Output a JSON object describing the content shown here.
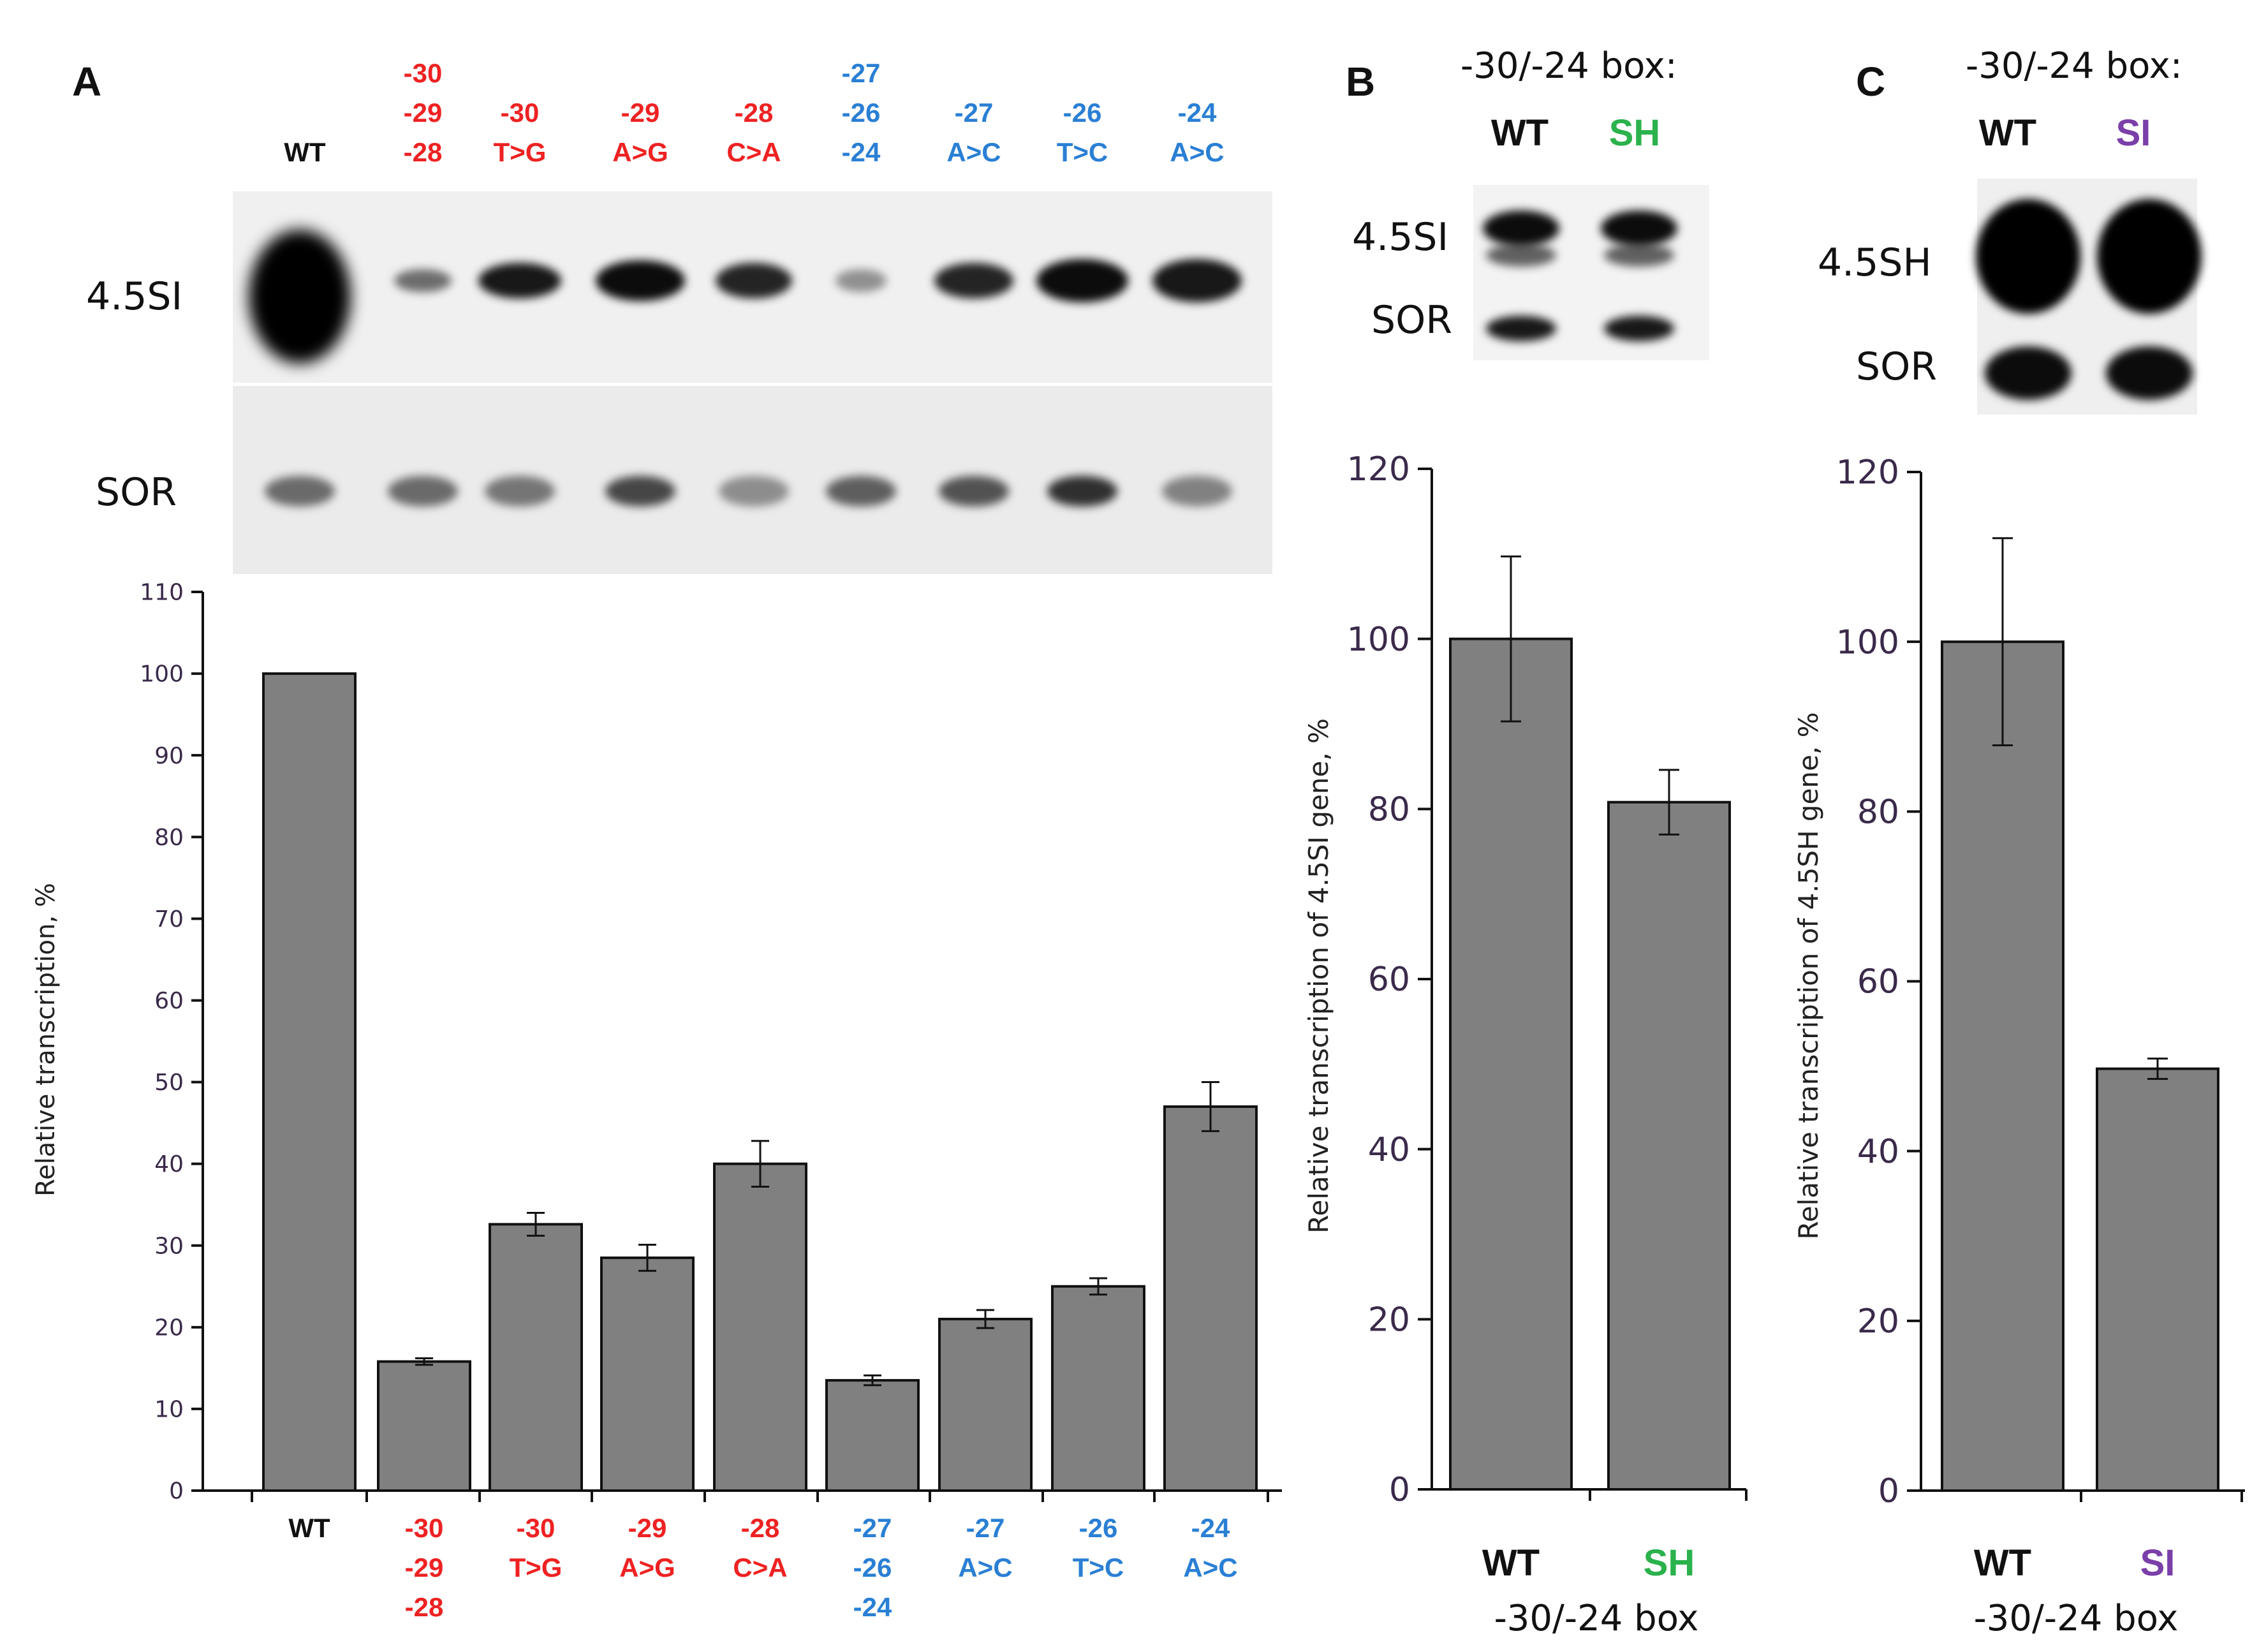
{
  "colors": {
    "red": "#ee2222",
    "blue": "#2a7fd4",
    "green": "#2bb24c",
    "purple": "#7a3fa8",
    "black": "#111111",
    "bar": "#808080"
  },
  "panels": {
    "A": "A",
    "B": "B",
    "C": "C"
  },
  "gel_labels": {
    "a_top": "4.5SI",
    "a_bottom": "SOR",
    "b_top": "4.5SI",
    "b_bottom": "SOR",
    "c_top": "4.5SH",
    "c_bottom": "SOR"
  },
  "box_labels": {
    "b_title": "-30/-24 box:",
    "c_title": "-30/-24 box:",
    "b_bottom": "-30/-24 box",
    "c_bottom": "-30/-24 box"
  },
  "lanes_A": [
    {
      "lines": [
        "WT"
      ],
      "color": "black"
    },
    {
      "lines": [
        "-30",
        "-29",
        "-28"
      ],
      "color": "red"
    },
    {
      "lines": [
        "-30",
        "T>G"
      ],
      "color": "red"
    },
    {
      "lines": [
        "-29",
        "A>G"
      ],
      "color": "red"
    },
    {
      "lines": [
        "-28",
        "C>A"
      ],
      "color": "red"
    },
    {
      "lines": [
        "-27",
        "-26",
        "-24"
      ],
      "color": "blue"
    },
    {
      "lines": [
        "-27",
        "A>C"
      ],
      "color": "blue"
    },
    {
      "lines": [
        "-26",
        "T>C"
      ],
      "color": "blue"
    },
    {
      "lines": [
        "-24",
        "A>C"
      ],
      "color": "blue"
    }
  ],
  "lanes_B": [
    {
      "label": "WT",
      "color": "black"
    },
    {
      "label": "SH",
      "color": "green"
    }
  ],
  "lanes_C": [
    {
      "label": "WT",
      "color": "black"
    },
    {
      "label": "SI",
      "color": "purple"
    }
  ],
  "chart_data": [
    {
      "panel": "A",
      "type": "bar",
      "categories": [
        "WT",
        "-30/-29/-28",
        "-30 T>G",
        "-29 A>G",
        "-28 C>A",
        "-27/-26/-24",
        "-27 A>C",
        "-26 T>C",
        "-24 A>C"
      ],
      "values": [
        100,
        15.8,
        32.6,
        28.5,
        40,
        13.5,
        21,
        25,
        47
      ],
      "errors": [
        0,
        0.4,
        1.4,
        1.6,
        2.8,
        0.6,
        1.1,
        1.0,
        3.0
      ],
      "ylabel": "Relative  transcription, %",
      "ylim": [
        0,
        110
      ],
      "yticks": [
        0,
        10,
        20,
        30,
        40,
        50,
        60,
        70,
        80,
        90,
        100,
        110
      ]
    },
    {
      "panel": "B",
      "type": "bar",
      "categories": [
        "WT",
        "SH"
      ],
      "values": [
        100,
        80.8
      ],
      "errors": [
        9.7,
        3.8
      ],
      "ylabel": "Relative  transcription of 4.5SI gene, %",
      "xlabel": "-30/-24 box",
      "ylim": [
        0,
        120
      ],
      "yticks": [
        0,
        20,
        40,
        60,
        80,
        100,
        120
      ]
    },
    {
      "panel": "C",
      "type": "bar",
      "categories": [
        "WT",
        "SI"
      ],
      "values": [
        100,
        49.7
      ],
      "errors": [
        12.2,
        1.2
      ],
      "ylabel": "Relative  transcription of 4.5SH gene, %",
      "xlabel": "-30/-24 box",
      "ylim": [
        0,
        120
      ],
      "yticks": [
        0,
        20,
        40,
        60,
        80,
        100,
        120
      ]
    }
  ]
}
